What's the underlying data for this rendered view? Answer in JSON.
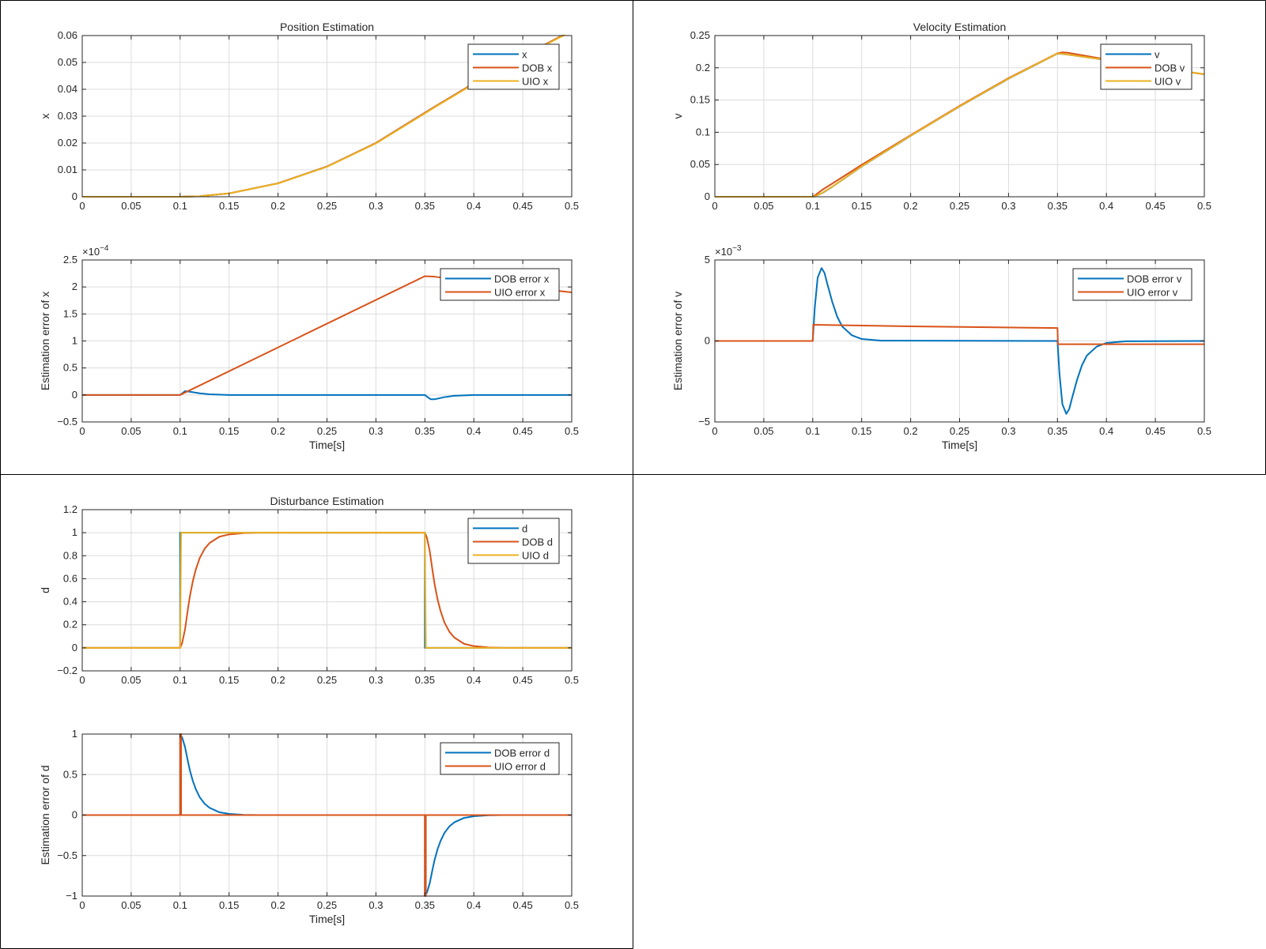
{
  "colors": {
    "series1": "#0072BD",
    "series2": "#D95319",
    "series3": "#EDB120",
    "axis": "#262626",
    "grid": "#dcdcdc",
    "panel_border": "#000000"
  },
  "chart_data": [
    {
      "id": "position",
      "type": "line",
      "title": "Position Estimation",
      "xlabel": "",
      "ylabel": "x",
      "xlim": [
        0,
        0.5
      ],
      "ylim": [
        0,
        0.06
      ],
      "xticks": [
        0,
        0.05,
        0.1,
        0.15,
        0.2,
        0.25,
        0.3,
        0.35,
        0.4,
        0.45,
        0.5
      ],
      "yticks": [
        0,
        0.01,
        0.02,
        0.03,
        0.04,
        0.05,
        0.06
      ],
      "scale_exponent": "",
      "grid": true,
      "legend": "top-right",
      "series": [
        {
          "name": "x",
          "x": [
            0,
            0.1,
            0.12,
            0.15,
            0.2,
            0.25,
            0.3,
            0.35,
            0.36,
            0.4,
            0.45,
            0.5
          ],
          "y": [
            0,
            0,
            0.0002,
            0.00125,
            0.005,
            0.01125,
            0.02,
            0.03125,
            0.0335,
            0.0422,
            0.0524,
            0.0618
          ]
        },
        {
          "name": "DOB x",
          "x": [
            0,
            0.1,
            0.12,
            0.15,
            0.2,
            0.25,
            0.3,
            0.35,
            0.36,
            0.4,
            0.45,
            0.5
          ],
          "y": [
            0,
            0,
            0.0002,
            0.00125,
            0.005,
            0.01125,
            0.02,
            0.03125,
            0.0335,
            0.0422,
            0.0524,
            0.0618
          ]
        },
        {
          "name": "UIO x",
          "x": [
            0,
            0.1,
            0.12,
            0.15,
            0.2,
            0.25,
            0.3,
            0.35,
            0.36,
            0.4,
            0.45,
            0.5
          ],
          "y": [
            0,
            0,
            0.0002,
            0.00124,
            0.00496,
            0.01116,
            0.01985,
            0.03103,
            0.0333,
            0.042,
            0.0522,
            0.0616
          ]
        }
      ]
    },
    {
      "id": "position-error",
      "type": "line",
      "title": "",
      "xlabel": "Time[s]",
      "ylabel": "Estimation error of x",
      "xlim": [
        0,
        0.5
      ],
      "ylim": [
        -0.5,
        2.5
      ],
      "xticks": [
        0,
        0.05,
        0.1,
        0.15,
        0.2,
        0.25,
        0.3,
        0.35,
        0.4,
        0.45,
        0.5
      ],
      "yticks": [
        -0.5,
        0,
        0.5,
        1,
        1.5,
        2,
        2.5
      ],
      "scale_exponent": "-4",
      "grid": true,
      "legend": "top-right",
      "series": [
        {
          "name": "DOB error x",
          "x": [
            0,
            0.1,
            0.105,
            0.11,
            0.12,
            0.13,
            0.15,
            0.35,
            0.352,
            0.356,
            0.36,
            0.365,
            0.37,
            0.38,
            0.4,
            0.5
          ],
          "y": [
            0,
            0,
            0.07,
            0.06,
            0.03,
            0.012,
            0,
            0,
            -0.03,
            -0.08,
            -0.08,
            -0.06,
            -0.04,
            -0.015,
            0,
            0
          ]
        },
        {
          "name": "UIO error x",
          "x": [
            0,
            0.1,
            0.35,
            0.36,
            0.4,
            0.45,
            0.5
          ],
          "y": [
            0,
            0,
            2.2,
            2.19,
            2.1,
            2.0,
            1.9
          ]
        }
      ]
    },
    {
      "id": "velocity",
      "type": "line",
      "title": "Velocity Estimation",
      "xlabel": "",
      "ylabel": "v",
      "xlim": [
        0,
        0.5
      ],
      "ylim": [
        0,
        0.25
      ],
      "xticks": [
        0,
        0.05,
        0.1,
        0.15,
        0.2,
        0.25,
        0.3,
        0.35,
        0.4,
        0.45,
        0.5
      ],
      "yticks": [
        0,
        0.05,
        0.1,
        0.15,
        0.2,
        0.25
      ],
      "scale_exponent": "",
      "grid": true,
      "legend": "top-right",
      "series": [
        {
          "name": "v",
          "x": [
            0,
            0.1,
            0.102,
            0.11,
            0.12,
            0.15,
            0.2,
            0.25,
            0.3,
            0.35,
            0.355,
            0.36,
            0.4,
            0.45,
            0.5
          ],
          "y": [
            0,
            0,
            0.0005,
            0.006,
            0.0155,
            0.047,
            0.0945,
            0.14,
            0.183,
            0.222,
            0.2215,
            0.2205,
            0.212,
            0.201,
            0.19
          ]
        },
        {
          "name": "DOB v",
          "x": [
            0,
            0.1,
            0.102,
            0.11,
            0.12,
            0.15,
            0.2,
            0.25,
            0.3,
            0.35,
            0.355,
            0.36,
            0.4,
            0.45,
            0.5
          ],
          "y": [
            0,
            0,
            0.002,
            0.011,
            0.0205,
            0.0495,
            0.0955,
            0.141,
            0.184,
            0.2225,
            0.224,
            0.2235,
            0.213,
            0.201,
            0.19
          ]
        },
        {
          "name": "UIO v",
          "x": [
            0,
            0.1,
            0.102,
            0.11,
            0.12,
            0.15,
            0.2,
            0.25,
            0.3,
            0.35,
            0.355,
            0.36,
            0.4,
            0.45,
            0.5
          ],
          "y": [
            0,
            0,
            0.0006,
            0.0062,
            0.0157,
            0.0472,
            0.0947,
            0.1402,
            0.1832,
            0.2222,
            0.2216,
            0.2206,
            0.2121,
            0.2011,
            0.1901
          ]
        }
      ]
    },
    {
      "id": "velocity-error",
      "type": "line",
      "title": "",
      "xlabel": "Time[s]",
      "ylabel": "Estimation error of v",
      "xlim": [
        0,
        0.5
      ],
      "ylim": [
        -5,
        5
      ],
      "xticks": [
        0,
        0.05,
        0.1,
        0.15,
        0.2,
        0.25,
        0.3,
        0.35,
        0.4,
        0.45,
        0.5
      ],
      "yticks": [
        -5,
        0,
        5
      ],
      "scale_exponent": "-3",
      "grid": true,
      "legend": "top-right",
      "series": [
        {
          "name": "DOB error v",
          "x": [
            0,
            0.1,
            0.102,
            0.105,
            0.109,
            0.112,
            0.115,
            0.12,
            0.125,
            0.13,
            0.14,
            0.15,
            0.17,
            0.35,
            0.352,
            0.355,
            0.359,
            0.362,
            0.365,
            0.37,
            0.375,
            0.38,
            0.39,
            0.4,
            0.42,
            0.5
          ],
          "y": [
            0,
            0,
            2.0,
            3.9,
            4.5,
            4.2,
            3.5,
            2.4,
            1.5,
            0.9,
            0.35,
            0.12,
            0.02,
            0,
            -2.0,
            -3.9,
            -4.5,
            -4.2,
            -3.5,
            -2.4,
            -1.5,
            -0.9,
            -0.35,
            -0.12,
            -0.02,
            0
          ]
        },
        {
          "name": "UIO error v",
          "x": [
            0,
            0.1,
            0.1005,
            0.2,
            0.35,
            0.3505,
            0.5
          ],
          "y": [
            0,
            0,
            1.0,
            0.9,
            0.8,
            -0.2,
            -0.2
          ]
        }
      ]
    },
    {
      "id": "disturbance",
      "type": "line",
      "title": "Disturbance Estimation",
      "xlabel": "",
      "ylabel": "d",
      "xlim": [
        0,
        0.5
      ],
      "ylim": [
        -0.2,
        1.2
      ],
      "xticks": [
        0,
        0.05,
        0.1,
        0.15,
        0.2,
        0.25,
        0.3,
        0.35,
        0.4,
        0.45,
        0.5
      ],
      "yticks": [
        -0.2,
        0,
        0.2,
        0.4,
        0.6,
        0.8,
        1,
        1.2
      ],
      "scale_exponent": "",
      "grid": true,
      "legend": "top-right",
      "series": [
        {
          "name": "d",
          "x": [
            0,
            0.1,
            0.1,
            0.35,
            0.35,
            0.5
          ],
          "y": [
            0,
            0,
            1,
            1,
            0,
            0
          ]
        },
        {
          "name": "DOB d",
          "x": [
            0,
            0.1,
            0.102,
            0.105,
            0.108,
            0.11,
            0.113,
            0.116,
            0.12,
            0.125,
            0.13,
            0.14,
            0.15,
            0.165,
            0.18,
            0.35,
            0.352,
            0.355,
            0.358,
            0.36,
            0.363,
            0.366,
            0.37,
            0.375,
            0.38,
            0.39,
            0.4,
            0.415,
            0.43,
            0.5
          ],
          "y": [
            0,
            0,
            0.04,
            0.16,
            0.34,
            0.45,
            0.58,
            0.68,
            0.78,
            0.86,
            0.91,
            0.965,
            0.985,
            0.997,
            1,
            1,
            0.96,
            0.84,
            0.66,
            0.55,
            0.42,
            0.32,
            0.22,
            0.14,
            0.09,
            0.035,
            0.015,
            0.003,
            0,
            0
          ]
        },
        {
          "name": "UIO d",
          "x": [
            0,
            0.1,
            0.101,
            0.35,
            0.351,
            0.5
          ],
          "y": [
            0,
            0,
            1,
            1,
            0,
            0
          ]
        }
      ]
    },
    {
      "id": "disturbance-error",
      "type": "line",
      "title": "",
      "xlabel": "Time[s]",
      "ylabel": "Estimation error of d",
      "xlim": [
        0,
        0.5
      ],
      "ylim": [
        -1,
        1
      ],
      "xticks": [
        0,
        0.05,
        0.1,
        0.15,
        0.2,
        0.25,
        0.3,
        0.35,
        0.4,
        0.45,
        0.5
      ],
      "yticks": [
        -1,
        -0.5,
        0,
        0.5,
        1
      ],
      "scale_exponent": "",
      "grid": true,
      "legend": "top-right",
      "series": [
        {
          "name": "DOB error d",
          "x": [
            0,
            0.1,
            0.1,
            0.102,
            0.105,
            0.108,
            0.11,
            0.113,
            0.116,
            0.12,
            0.125,
            0.13,
            0.14,
            0.15,
            0.165,
            0.18,
            0.35,
            0.35,
            0.352,
            0.355,
            0.358,
            0.36,
            0.363,
            0.366,
            0.37,
            0.375,
            0.38,
            0.39,
            0.4,
            0.415,
            0.43,
            0.5
          ],
          "y": [
            0,
            0,
            1,
            0.96,
            0.84,
            0.66,
            0.55,
            0.42,
            0.32,
            0.22,
            0.14,
            0.09,
            0.035,
            0.015,
            0.003,
            0,
            0,
            -1,
            -0.96,
            -0.84,
            -0.66,
            -0.55,
            -0.42,
            -0.32,
            -0.22,
            -0.14,
            -0.09,
            -0.035,
            -0.015,
            -0.003,
            0,
            0
          ]
        },
        {
          "name": "UIO error d",
          "x": [
            0,
            0.1,
            0.1,
            0.101,
            0.101,
            0.35,
            0.35,
            0.351,
            0.351,
            0.5
          ],
          "y": [
            0,
            0,
            1,
            1,
            0,
            0,
            -1,
            -1,
            0,
            0
          ]
        }
      ]
    }
  ]
}
